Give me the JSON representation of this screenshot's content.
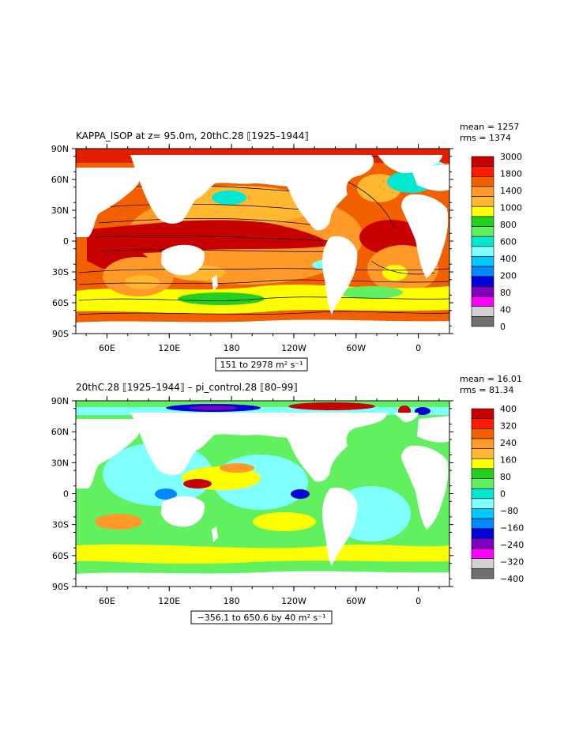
{
  "panels": [
    {
      "id": "top",
      "title": "KAPPA_ISOP at z=  95.0m, 20thC.28 ⟦1925–1944⟧",
      "stats": {
        "mean": "mean = 1257",
        "rms": "rms = 1374"
      },
      "range_label": "151 to 2978 m² s⁻¹",
      "colorbar": {
        "labels": [
          "3000",
          "1800",
          "1400",
          "1000",
          "800",
          "600",
          "400",
          "200",
          "80",
          "40",
          "0"
        ],
        "colors": [
          "#c80000",
          "#ff1a00",
          "#f26000",
          "#ff9a28",
          "#ffb830",
          "#ffff00",
          "#22d022",
          "#60f060",
          "#00e8d0",
          "#80ffff",
          "#00c8ff",
          "#0088ff",
          "#0000dd",
          "#8000c0",
          "#ff00ff",
          "#d0d0d0",
          "#707070"
        ]
      }
    },
    {
      "id": "bottom",
      "title": "20thC.28 ⟦1925–1944⟧ – pi_control.28 ⟦80–99⟧",
      "stats": {
        "mean": "mean = 16.01",
        "rms": "rms = 81.34"
      },
      "range_label": "−356.1 to 650.6 by 40 m² s⁻¹",
      "colorbar": {
        "labels": [
          "400",
          "320",
          "240",
          "160",
          "80",
          "0",
          "−80",
          "−160",
          "−240",
          "−320",
          "−400"
        ],
        "colors": [
          "#c80000",
          "#ff1a00",
          "#f26000",
          "#ff9a28",
          "#ffb830",
          "#ffff00",
          "#22d022",
          "#60f060",
          "#00e8d0",
          "#80ffff",
          "#00c8ff",
          "#0088ff",
          "#0000dd",
          "#8000c0",
          "#ff00ff",
          "#d0d0d0",
          "#707070"
        ]
      }
    }
  ],
  "lat_labels": [
    "90N",
    "60N",
    "30N",
    "0",
    "30S",
    "60S",
    "90S"
  ],
  "lon_labels": [
    "60E",
    "120E",
    "180",
    "120W",
    "60W",
    "0"
  ],
  "colors": {
    "land": "#ffffff",
    "axis": "#000000"
  }
}
